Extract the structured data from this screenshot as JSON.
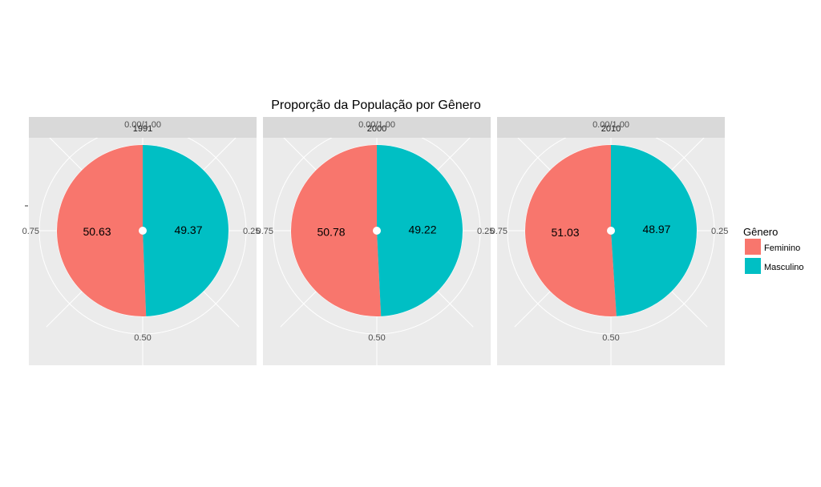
{
  "chart_data": {
    "type": "pie",
    "title": "Proporção da População por Gênero",
    "legend": {
      "title": "Gênero",
      "position": "right",
      "entries": [
        {
          "label": "Feminino",
          "color": "#F8766D"
        },
        {
          "label": "Masculino",
          "color": "#00BFC4"
        }
      ]
    },
    "axis_ticks": [
      "0.00/1.00",
      "0.25",
      "0.50",
      "0.75"
    ],
    "grid": true,
    "panels": [
      {
        "facet": "1991",
        "slices": [
          {
            "category": "Feminino",
            "value": 50.63,
            "label": "50.63"
          },
          {
            "category": "Masculino",
            "value": 49.37,
            "label": "49.37"
          }
        ]
      },
      {
        "facet": "2000",
        "slices": [
          {
            "category": "Feminino",
            "value": 50.78,
            "label": "50.78"
          },
          {
            "category": "Masculino",
            "value": 49.22,
            "label": "49.22"
          }
        ]
      },
      {
        "facet": "2010",
        "slices": [
          {
            "category": "Feminino",
            "value": 51.03,
            "label": "51.03"
          },
          {
            "category": "Masculino",
            "value": 48.97,
            "label": "48.97"
          }
        ]
      }
    ]
  }
}
